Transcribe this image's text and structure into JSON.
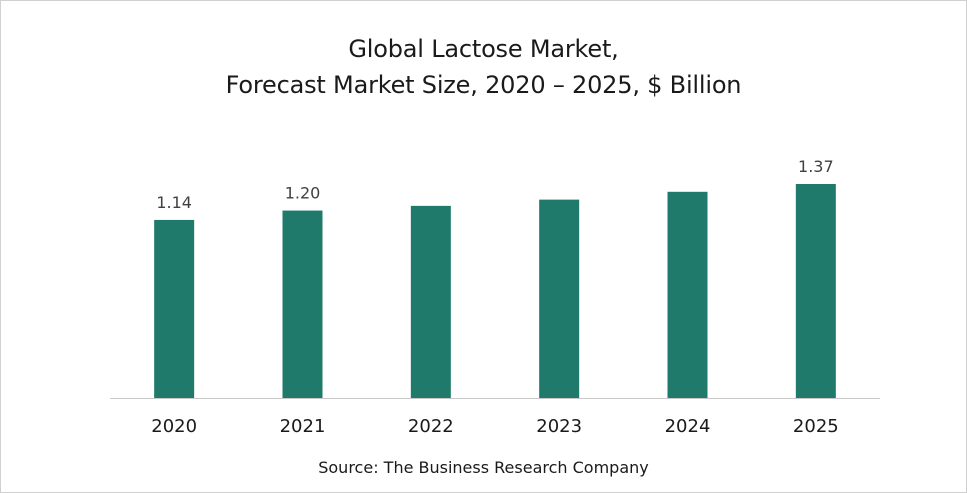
{
  "chart_data": {
    "type": "bar",
    "title_line1": "Global Lactose Market,",
    "title_line2": "Forecast Market Size, 2020 – 2025, $ Billion",
    "categories": [
      "2020",
      "2021",
      "2022",
      "2023",
      "2024",
      "2025"
    ],
    "values": [
      1.14,
      1.2,
      1.23,
      1.27,
      1.32,
      1.37
    ],
    "data_labels": [
      "1.14",
      "1.20",
      "",
      "",
      "",
      "1.37"
    ],
    "xlabel": "",
    "ylabel": "",
    "ylim": [
      0,
      1.37
    ],
    "grid": false,
    "bar_color": "#1f7a6b",
    "source": "Source: The Business Research Company"
  }
}
